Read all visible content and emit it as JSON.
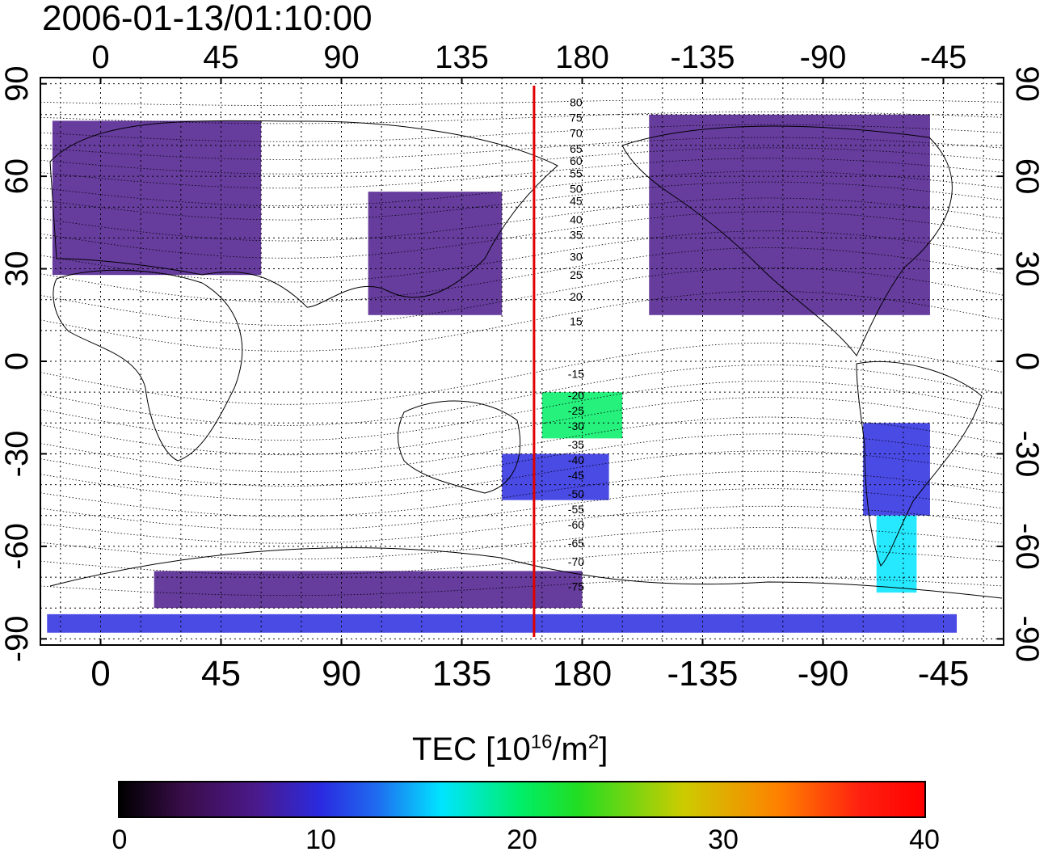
{
  "title": "2006-01-13/01:10:00",
  "map": {
    "lon_axis_labels": [
      "0",
      "45",
      "90",
      "135",
      "180",
      "-135",
      "-90",
      "-45"
    ],
    "lon_axis_values": [
      0,
      45,
      90,
      135,
      180,
      225,
      270,
      315
    ],
    "lat_axis_labels": [
      "90",
      "60",
      "30",
      "0",
      "-30",
      "-60",
      "-90"
    ],
    "lat_axis_values": [
      90,
      60,
      30,
      0,
      -30,
      -60,
      -90
    ],
    "lon_range": [
      -22.5,
      337.5
    ],
    "lat_range": [
      -92,
      92
    ],
    "meridian_marker_lon": 162,
    "meridian_marker_color": "#e00000",
    "contour_labels": [
      {
        "text": "80",
        "lat": 84
      },
      {
        "text": "75",
        "lat": 79
      },
      {
        "text": "70",
        "lat": 74
      },
      {
        "text": "65",
        "lat": 69
      },
      {
        "text": "60",
        "lat": 65
      },
      {
        "text": "55",
        "lat": 61
      },
      {
        "text": "50",
        "lat": 56
      },
      {
        "text": "45",
        "lat": 52
      },
      {
        "text": "40",
        "lat": 46
      },
      {
        "text": "35",
        "lat": 41
      },
      {
        "text": "30",
        "lat": 34
      },
      {
        "text": "25",
        "lat": 28
      },
      {
        "text": "20",
        "lat": 21
      },
      {
        "text": "15",
        "lat": 13
      },
      {
        "text": "-15",
        "lat": -4
      },
      {
        "text": "-20",
        "lat": -11
      },
      {
        "text": "-25",
        "lat": -16
      },
      {
        "text": "-30",
        "lat": -21
      },
      {
        "text": "-35",
        "lat": -27
      },
      {
        "text": "-40",
        "lat": -32
      },
      {
        "text": "-45",
        "lat": -37
      },
      {
        "text": "-50",
        "lat": -43
      },
      {
        "text": "-55",
        "lat": -48
      },
      {
        "text": "-60",
        "lat": -53
      },
      {
        "text": "-65",
        "lat": -59
      },
      {
        "text": "-70",
        "lat": -65
      },
      {
        "text": "-75",
        "lat": -73
      }
    ],
    "tec_regions": [
      {
        "lon": [
          -18,
          60
        ],
        "lat": [
          28,
          78
        ],
        "tec": 3
      },
      {
        "lon": [
          100,
          150
        ],
        "lat": [
          15,
          55
        ],
        "tec": 8
      },
      {
        "lon": [
          205,
          310
        ],
        "lat": [
          15,
          80
        ],
        "tec": 7
      },
      {
        "lon": [
          285,
          310
        ],
        "lat": [
          -50,
          -20
        ],
        "tec": 12
      },
      {
        "lon": [
          290,
          305
        ],
        "lat": [
          -75,
          -50
        ],
        "tec": 16
      },
      {
        "lon": [
          150,
          190
        ],
        "lat": [
          -45,
          -30
        ],
        "tec": 13
      },
      {
        "lon": [
          165,
          195
        ],
        "lat": [
          -25,
          -10
        ],
        "tec": 22
      },
      {
        "lon": [
          -20,
          320
        ],
        "lat": [
          -88,
          -82
        ],
        "tec": 9
      },
      {
        "lon": [
          20,
          180
        ],
        "lat": [
          -80,
          -68
        ],
        "tec": 5
      }
    ]
  },
  "colorbar": {
    "label": "TEC  [10",
    "label_exp": "16",
    "label_mid": "/m",
    "label_exp2": "2",
    "label_end": "]",
    "range": [
      0,
      40
    ],
    "tick_labels": [
      "0",
      "10",
      "20",
      "30",
      "40"
    ],
    "colors": [
      "#000000",
      "#4b1a8c",
      "#2a2ae0",
      "#00e5ff",
      "#00ee66",
      "#cccc00",
      "#ff8000",
      "#ff0000"
    ]
  }
}
